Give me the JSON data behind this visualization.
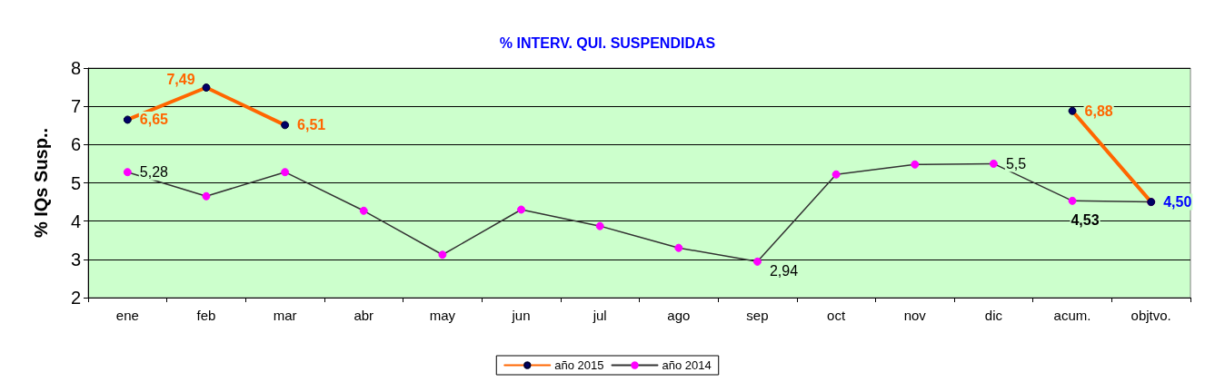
{
  "chart_data": {
    "type": "line",
    "title": "% INTERV. QUI. SUSPENDIDAS",
    "ylabel": "% IQs Susp..",
    "categories": [
      "ene",
      "feb",
      "mar",
      "abr",
      "may",
      "jun",
      "jul",
      "ago",
      "sep",
      "oct",
      "nov",
      "dic",
      "acum.",
      "objtvo."
    ],
    "series": [
      {
        "name": "año 2015",
        "color": "#ff6600",
        "values": [
          6.65,
          7.49,
          6.51,
          null,
          null,
          null,
          null,
          null,
          null,
          null,
          null,
          null,
          6.88,
          4.5
        ],
        "value_labels": [
          "6,65",
          "7,49",
          "6,51",
          null,
          null,
          null,
          null,
          null,
          null,
          null,
          null,
          null,
          "6,88",
          "4,50"
        ]
      },
      {
        "name": "año 2014",
        "color": "#333333",
        "values": [
          5.28,
          4.65,
          5.28,
          4.27,
          3.12,
          4.3,
          3.87,
          3.3,
          2.94,
          5.22,
          5.48,
          5.5,
          4.53,
          4.5
        ],
        "value_labels": [
          "5,28",
          null,
          null,
          null,
          null,
          null,
          null,
          null,
          "2,94",
          null,
          null,
          "5,5",
          "4,53",
          null
        ]
      }
    ],
    "ylim": [
      2,
      8
    ],
    "yticks": [
      2,
      3,
      4,
      5,
      6,
      7,
      8
    ],
    "grid": "y",
    "legend": "bottom",
    "marker": "circle",
    "line_style": "solid"
  }
}
